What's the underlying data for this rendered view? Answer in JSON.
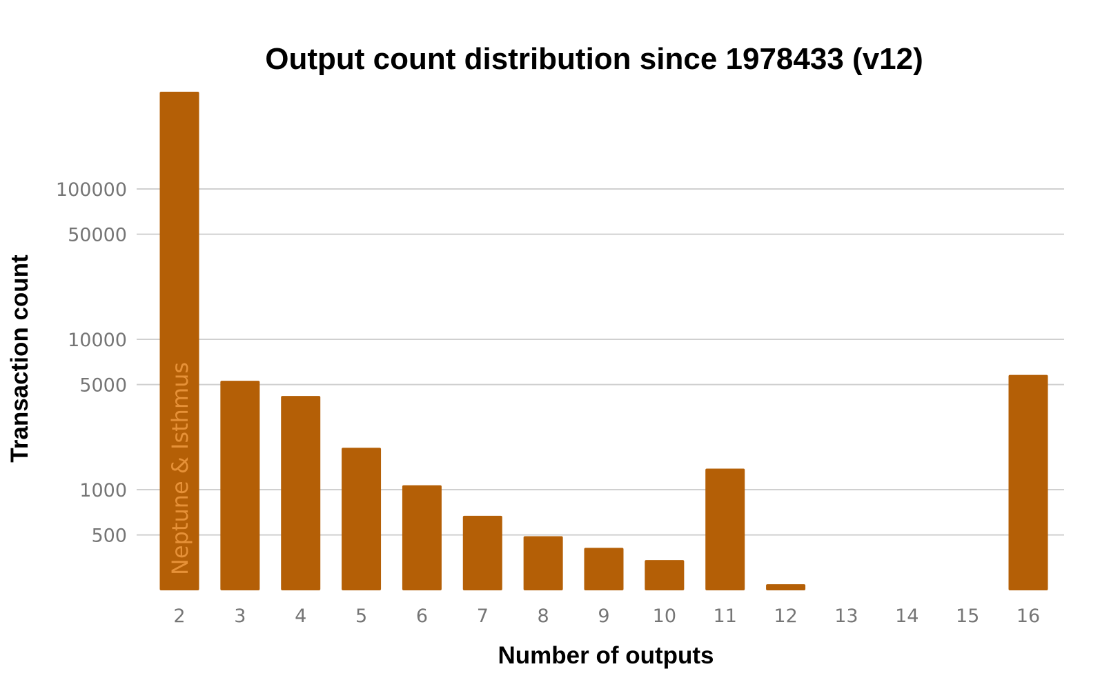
{
  "chart_data": {
    "type": "bar",
    "title": "Output count distribution since 1978433 (v12)",
    "xlabel": "Number of outputs",
    "ylabel": "Transaction count",
    "yscale": "log",
    "categories": [
      "2",
      "3",
      "4",
      "5",
      "6",
      "7",
      "8",
      "9",
      "10",
      "11",
      "12",
      "13",
      "14",
      "15",
      "16"
    ],
    "values": [
      470000,
      5300,
      4200,
      1900,
      1070,
      670,
      490,
      410,
      340,
      1380,
      235,
      203,
      200,
      203,
      5800
    ],
    "yticks": [
      {
        "value": 100000,
        "label": "100000"
      },
      {
        "value": 50000,
        "label": "50000"
      },
      {
        "value": 10000,
        "label": "10000"
      },
      {
        "value": 5000,
        "label": "5000"
      },
      {
        "value": 1000,
        "label": "1000"
      },
      {
        "value": 500,
        "label": "500"
      }
    ],
    "ylim": [
      200,
      470000
    ],
    "grid": true,
    "bar_color": "#b45f06",
    "annotation": {
      "text": "Neptune & Isthmus",
      "color": "#e69138"
    }
  }
}
